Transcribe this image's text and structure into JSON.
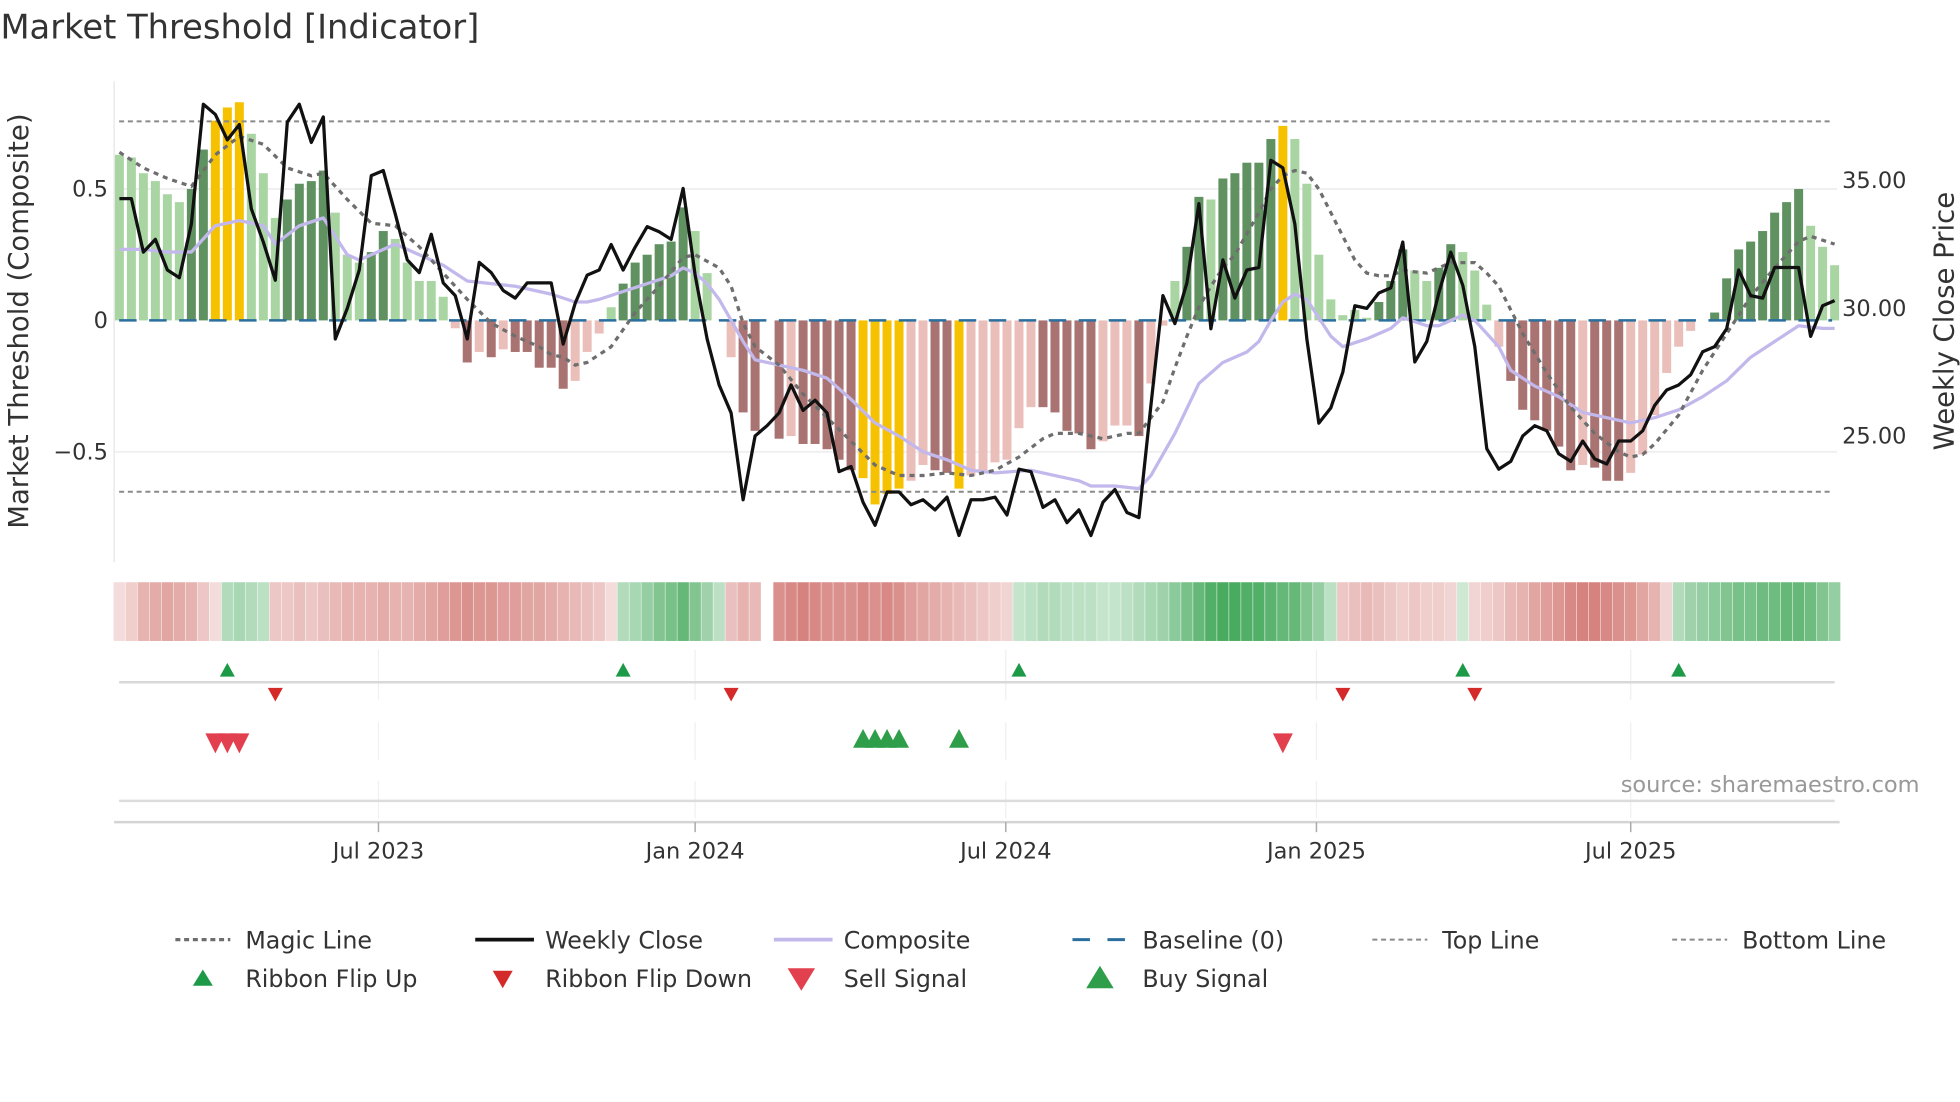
{
  "chart_data": {
    "type": "bar",
    "title": "Market Threshold [Indicator]",
    "ylabel": "Market Threshold (Composite)",
    "y2label": "Weekly Close Price",
    "ylim": [
      -0.92,
      0.91
    ],
    "y2lim": [
      20.05,
      38.9
    ],
    "yticks": [
      {
        "value": 0.5,
        "label": "0.5"
      },
      {
        "value": 0,
        "label": "0"
      },
      {
        "value": -0.5,
        "label": "−0.5"
      }
    ],
    "y2ticks": [
      {
        "value": 35,
        "label": "35.00"
      },
      {
        "value": 30,
        "label": "30.00"
      },
      {
        "value": 25,
        "label": "25.00"
      }
    ],
    "xticks": [
      {
        "week": 21.6,
        "label": "Jul 2023"
      },
      {
        "week": 48.0,
        "label": "Jan 2024"
      },
      {
        "week": 73.9,
        "label": "Jul 2024"
      },
      {
        "week": 99.8,
        "label": "Jan 2025"
      },
      {
        "week": 126.0,
        "label": "Jul 2025"
      }
    ],
    "top_line": 0.757,
    "bottom_line": -0.652,
    "baseline": 0,
    "grid": true,
    "legend_placement": "bottom",
    "composite_bars": [
      0.63,
      0.62,
      0.56,
      0.53,
      0.48,
      0.45,
      0.5,
      0.65,
      0.76,
      0.81,
      0.83,
      0.71,
      0.56,
      0.39,
      0.46,
      0.52,
      0.53,
      0.57,
      0.41,
      0.25,
      0.22,
      0.26,
      0.34,
      0.31,
      0.22,
      0.15,
      0.15,
      0.09,
      -0.03,
      -0.16,
      -0.12,
      -0.14,
      -0.11,
      -0.12,
      -0.12,
      -0.18,
      -0.18,
      -0.26,
      -0.23,
      -0.12,
      -0.05,
      0.05,
      0.14,
      0.22,
      0.25,
      0.29,
      0.3,
      0.43,
      0.34,
      0.18,
      0.0,
      -0.14,
      -0.35,
      -0.42,
      0,
      -0.45,
      -0.44,
      -0.47,
      -0.47,
      -0.49,
      -0.53,
      -0.57,
      -0.6,
      -0.7,
      -0.66,
      -0.64,
      -0.61,
      -0.55,
      -0.57,
      -0.58,
      -0.64,
      -0.59,
      -0.57,
      -0.54,
      -0.53,
      -0.41,
      -0.33,
      -0.33,
      -0.35,
      -0.42,
      -0.43,
      -0.49,
      -0.46,
      -0.4,
      -0.4,
      -0.44,
      -0.24,
      -0.02,
      0.15,
      0.28,
      0.47,
      0.46,
      0.54,
      0.56,
      0.6,
      0.6,
      0.69,
      0.74,
      0.69,
      0.52,
      0.25,
      0.08,
      0.02,
      0.04,
      0.01,
      0.07,
      0.15,
      0.27,
      0.19,
      0.15,
      0.2,
      0.29,
      0.26,
      0.19,
      0.06,
      -0.1,
      -0.23,
      -0.34,
      -0.38,
      -0.42,
      -0.48,
      -0.57,
      -0.55,
      -0.56,
      -0.61,
      -0.61,
      -0.58,
      -0.51,
      -0.36,
      -0.2,
      -0.1,
      -0.04,
      0,
      0.03,
      0.16,
      0.27,
      0.3,
      0.34,
      0.41,
      0.45,
      0.5,
      0.36,
      0.28,
      0.21
    ],
    "bar_states": [
      "lg",
      "lg",
      "lg",
      "lg",
      "lg",
      "lg",
      "dg",
      "dg",
      "y",
      "y",
      "y",
      "lg",
      "lg",
      "lg",
      "dg",
      "dg",
      "dg",
      "dg",
      "lg",
      "lg",
      "lg",
      "dg",
      "dg",
      "lg",
      "lg",
      "lg",
      "lg",
      "lg",
      "pk",
      "dr",
      "pk",
      "dr",
      "pk",
      "dr",
      "dr",
      "dr",
      "dr",
      "dr",
      "pk",
      "pk",
      "pk",
      "lg",
      "dg",
      "dg",
      "dg",
      "dg",
      "dg",
      "dg",
      "lg",
      "lg",
      "lg",
      "pk",
      "dr",
      "dr",
      "none",
      "dr",
      "pk",
      "dr",
      "dr",
      "dr",
      "dr",
      "dr",
      "y",
      "y",
      "y",
      "y",
      "pk",
      "pk",
      "dr",
      "dr",
      "y",
      "pk",
      "pk",
      "pk",
      "pk",
      "pk",
      "pk",
      "dr",
      "dr",
      "dr",
      "dr",
      "dr",
      "pk",
      "pk",
      "pk",
      "dr",
      "pk",
      "pk",
      "lg",
      "dg",
      "dg",
      "lg",
      "dg",
      "dg",
      "dg",
      "dg",
      "dg",
      "y",
      "lg",
      "lg",
      "lg",
      "lg",
      "lg",
      "lg",
      "lg",
      "dg",
      "dg",
      "dg",
      "lg",
      "lg",
      "dg",
      "dg",
      "lg",
      "lg",
      "lg",
      "pk",
      "dr",
      "dr",
      "dr",
      "dr",
      "dr",
      "dr",
      "pk",
      "dr",
      "dr",
      "dr",
      "pk",
      "pk",
      "pk",
      "pk",
      "pk",
      "pk",
      "none",
      "dg",
      "dg",
      "dg",
      "dg",
      "dg",
      "dg",
      "dg",
      "dg",
      "lg",
      "lg",
      "lg"
    ],
    "bar_state_colors": {
      "lg": "#a9d5a3",
      "dg": "#5f9260",
      "y": "#f6c200",
      "pk": "#ebbfb9",
      "dr": "#a97371",
      "none": "#ffffff"
    },
    "weekly_close": [
      34.3,
      34.3,
      32.2,
      32.7,
      31.5,
      31.2,
      33.3,
      38.0,
      37.6,
      36.6,
      37.2,
      33.9,
      32.6,
      31.1,
      37.3,
      38.0,
      36.5,
      37.5,
      28.8,
      30.0,
      31.5,
      35.2,
      35.4,
      33.7,
      31.9,
      31.4,
      32.9,
      31.0,
      30.5,
      28.8,
      31.8,
      31.4,
      30.7,
      30.4,
      31.0,
      31.0,
      31.0,
      28.6,
      30.2,
      31.3,
      31.5,
      32.5,
      31.5,
      32.4,
      33.2,
      33.0,
      32.7,
      34.7,
      31.3,
      28.8,
      27.0,
      25.9,
      22.5,
      25.0,
      25.4,
      25.9,
      27.0,
      26.0,
      26.4,
      25.9,
      23.6,
      23.8,
      22.4,
      21.5,
      22.8,
      22.8,
      22.3,
      22.5,
      22.1,
      22.6,
      21.1,
      22.5,
      22.5,
      22.6,
      21.9,
      23.7,
      23.6,
      22.2,
      22.5,
      21.6,
      22.1,
      21.1,
      22.4,
      22.9,
      22.0,
      21.8,
      26.2,
      30.5,
      29.4,
      31.0,
      34.1,
      29.2,
      31.9,
      30.4,
      31.5,
      31.6,
      35.8,
      35.5,
      33.3,
      28.8,
      25.5,
      26.1,
      27.5,
      30.1,
      30.0,
      30.6,
      30.8,
      32.6,
      27.9,
      28.7,
      30.6,
      32.2,
      30.9,
      28.5,
      24.5,
      23.7,
      24.0,
      25.0,
      25.4,
      25.2,
      24.3,
      24.0,
      24.8,
      24.1,
      23.9,
      24.8,
      24.8,
      25.2,
      26.2,
      26.8,
      27.0,
      27.4,
      28.3,
      28.5,
      29.2,
      31.5,
      30.5,
      30.4,
      31.6,
      31.6,
      31.6,
      28.9,
      30.1,
      30.3
    ],
    "composite_line": [
      [
        0,
        0.27
      ],
      [
        2,
        0.27
      ],
      [
        4,
        0.26
      ],
      [
        6,
        0.26
      ],
      [
        8,
        0.36
      ],
      [
        10,
        0.38
      ],
      [
        12,
        0.36
      ],
      [
        13,
        0.29
      ],
      [
        15,
        0.36
      ],
      [
        17,
        0.39
      ],
      [
        19,
        0.25
      ],
      [
        20,
        0.23
      ],
      [
        21,
        0.25
      ],
      [
        23,
        0.29
      ],
      [
        25,
        0.25
      ],
      [
        27,
        0.21
      ],
      [
        29,
        0.15
      ],
      [
        31,
        0.14
      ],
      [
        33,
        0.13
      ],
      [
        35,
        0.11
      ],
      [
        36,
        0.1
      ],
      [
        38,
        0.07
      ],
      [
        39,
        0.07
      ],
      [
        40,
        0.08
      ],
      [
        42,
        0.11
      ],
      [
        44,
        0.14
      ],
      [
        46,
        0.17
      ],
      [
        47,
        0.2
      ],
      [
        48,
        0.18
      ],
      [
        49,
        0.14
      ],
      [
        50,
        0.08
      ],
      [
        51,
        0
      ],
      [
        52,
        -0.08
      ],
      [
        53,
        -0.15
      ],
      [
        55,
        -0.17
      ],
      [
        57,
        -0.19
      ],
      [
        59,
        -0.22
      ],
      [
        61,
        -0.3
      ],
      [
        63,
        -0.39
      ],
      [
        65,
        -0.44
      ],
      [
        67,
        -0.5
      ],
      [
        69,
        -0.53
      ],
      [
        71,
        -0.57
      ],
      [
        73,
        -0.58
      ],
      [
        76,
        -0.57
      ],
      [
        78,
        -0.59
      ],
      [
        80,
        -0.61
      ],
      [
        81,
        -0.63
      ],
      [
        83,
        -0.63
      ],
      [
        85,
        -0.64
      ],
      [
        86,
        -0.59
      ],
      [
        87,
        -0.51
      ],
      [
        88,
        -0.43
      ],
      [
        90,
        -0.24
      ],
      [
        92,
        -0.16
      ],
      [
        94,
        -0.12
      ],
      [
        95,
        -0.08
      ],
      [
        96,
        0
      ],
      [
        97,
        0.07
      ],
      [
        98,
        0.1
      ],
      [
        99,
        0.08
      ],
      [
        101,
        -0.06
      ],
      [
        102,
        -0.1
      ],
      [
        104,
        -0.07
      ],
      [
        106,
        -0.03
      ],
      [
        107,
        0.01
      ],
      [
        109,
        -0.02
      ],
      [
        110,
        -0.02
      ],
      [
        112,
        0.02
      ],
      [
        113,
        0
      ],
      [
        115,
        -0.1
      ],
      [
        116,
        -0.19
      ],
      [
        118,
        -0.25
      ],
      [
        120,
        -0.29
      ],
      [
        122,
        -0.35
      ],
      [
        124,
        -0.37
      ],
      [
        126,
        -0.39
      ],
      [
        128,
        -0.37
      ],
      [
        130,
        -0.34
      ],
      [
        132,
        -0.29
      ],
      [
        134,
        -0.23
      ],
      [
        136,
        -0.14
      ],
      [
        138,
        -0.08
      ],
      [
        140,
        -0.02
      ],
      [
        142,
        -0.03
      ],
      [
        143,
        -0.03
      ]
    ],
    "magic_line": [
      [
        0,
        0.64
      ],
      [
        2,
        0.58
      ],
      [
        4,
        0.54
      ],
      [
        6,
        0.51
      ],
      [
        8,
        0.63
      ],
      [
        10,
        0.7
      ],
      [
        12,
        0.67
      ],
      [
        14,
        0.58
      ],
      [
        16,
        0.55
      ],
      [
        17,
        0.56
      ],
      [
        19,
        0.46
      ],
      [
        21,
        0.37
      ],
      [
        23,
        0.36
      ],
      [
        25,
        0.28
      ],
      [
        27,
        0.18
      ],
      [
        29,
        0.08
      ],
      [
        31,
        -0.01
      ],
      [
        33,
        -0.06
      ],
      [
        35,
        -0.1
      ],
      [
        36,
        -0.13
      ],
      [
        37,
        -0.14
      ],
      [
        38,
        -0.17
      ],
      [
        39,
        -0.16
      ],
      [
        41,
        -0.1
      ],
      [
        43,
        0.03
      ],
      [
        45,
        0.13
      ],
      [
        47,
        0.24
      ],
      [
        48,
        0.25
      ],
      [
        50,
        0.2
      ],
      [
        51,
        0.13
      ],
      [
        52,
        -0.01
      ],
      [
        53,
        -0.1
      ],
      [
        55,
        -0.17
      ],
      [
        57,
        -0.28
      ],
      [
        59,
        -0.37
      ],
      [
        61,
        -0.46
      ],
      [
        63,
        -0.55
      ],
      [
        65,
        -0.59
      ],
      [
        67,
        -0.59
      ],
      [
        69,
        -0.58
      ],
      [
        71,
        -0.59
      ],
      [
        73,
        -0.57
      ],
      [
        75,
        -0.52
      ],
      [
        77,
        -0.45
      ],
      [
        78,
        -0.43
      ],
      [
        80,
        -0.43
      ],
      [
        82,
        -0.45
      ],
      [
        84,
        -0.43
      ],
      [
        85,
        -0.43
      ],
      [
        86,
        -0.37
      ],
      [
        87,
        -0.31
      ],
      [
        88,
        -0.18
      ],
      [
        89,
        -0.06
      ],
      [
        90,
        0.05
      ],
      [
        91,
        0.13
      ],
      [
        92,
        0.2
      ],
      [
        93,
        0.25
      ],
      [
        94,
        0.33
      ],
      [
        95,
        0.41
      ],
      [
        96,
        0.5
      ],
      [
        97,
        0.55
      ],
      [
        98,
        0.57
      ],
      [
        99,
        0.56
      ],
      [
        100,
        0.5
      ],
      [
        101,
        0.41
      ],
      [
        102,
        0.32
      ],
      [
        103,
        0.23
      ],
      [
        104,
        0.18
      ],
      [
        105,
        0.17
      ],
      [
        106,
        0.17
      ],
      [
        107,
        0.19
      ],
      [
        109,
        0.18
      ],
      [
        111,
        0.22
      ],
      [
        113,
        0.22
      ],
      [
        114,
        0.18
      ],
      [
        115,
        0.13
      ],
      [
        117,
        -0.05
      ],
      [
        119,
        -0.2
      ],
      [
        121,
        -0.33
      ],
      [
        123,
        -0.43
      ],
      [
        125,
        -0.5
      ],
      [
        126,
        -0.52
      ],
      [
        127,
        -0.51
      ],
      [
        128,
        -0.47
      ],
      [
        130,
        -0.36
      ],
      [
        132,
        -0.19
      ],
      [
        134,
        -0.05
      ],
      [
        136,
        0.09
      ],
      [
        138,
        0.2
      ],
      [
        140,
        0.3
      ],
      [
        141,
        0.32
      ],
      [
        143,
        0.29
      ]
    ],
    "ribbon": [
      -0.15,
      -0.25,
      -0.45,
      -0.5,
      -0.55,
      -0.5,
      -0.45,
      -0.3,
      -0.15,
      0.3,
      0.35,
      0.3,
      0.25,
      -0.3,
      -0.3,
      -0.35,
      -0.3,
      -0.35,
      -0.4,
      -0.45,
      -0.45,
      -0.45,
      -0.5,
      -0.45,
      -0.45,
      -0.5,
      -0.55,
      -0.6,
      -0.65,
      -0.7,
      -0.65,
      -0.65,
      -0.6,
      -0.6,
      -0.55,
      -0.55,
      -0.5,
      -0.45,
      -0.4,
      -0.35,
      -0.3,
      -0.15,
      0.3,
      0.35,
      0.45,
      0.55,
      0.6,
      0.7,
      0.55,
      0.4,
      0.25,
      -0.35,
      -0.45,
      -0.4,
      null,
      -0.7,
      -0.75,
      -0.8,
      -0.75,
      -0.7,
      -0.7,
      -0.7,
      -0.75,
      -0.7,
      -0.75,
      -0.7,
      -0.6,
      -0.55,
      -0.5,
      -0.45,
      -0.4,
      -0.35,
      -0.3,
      -0.25,
      -0.2,
      0.2,
      0.25,
      0.3,
      0.3,
      0.25,
      0.25,
      0.25,
      0.2,
      0.2,
      0.25,
      0.3,
      0.35,
      0.4,
      0.5,
      0.6,
      0.7,
      0.8,
      0.85,
      0.85,
      0.8,
      0.8,
      0.75,
      0.7,
      0.7,
      0.55,
      0.45,
      0.25,
      -0.3,
      -0.35,
      -0.4,
      -0.35,
      -0.3,
      -0.25,
      -0.3,
      -0.25,
      -0.25,
      -0.2,
      0.15,
      -0.2,
      -0.25,
      -0.3,
      -0.4,
      -0.45,
      -0.55,
      -0.6,
      -0.65,
      -0.75,
      -0.8,
      -0.8,
      -0.75,
      -0.7,
      -0.65,
      -0.55,
      -0.45,
      -0.2,
      0.3,
      0.4,
      0.45,
      0.5,
      0.55,
      0.6,
      0.6,
      0.65,
      0.65,
      0.7,
      0.7,
      0.65,
      0.55,
      0.45
    ],
    "ribbon_flip_up_weeks": [
      9,
      42,
      75,
      112,
      130
    ],
    "ribbon_flip_down_weeks": [
      13,
      51,
      102,
      113
    ],
    "sell_signal_weeks": [
      8,
      9,
      10,
      97
    ],
    "buy_signal_weeks": [
      62,
      63,
      64,
      65,
      70
    ],
    "colors": {
      "magic": "#6e6e6e",
      "close": "#111111",
      "composite": "#c3b8ec",
      "baseline": "#2b6f9e",
      "limit": "#8a8a8a",
      "flip_up": "#1d9a48",
      "flip_down": "#d42a2a",
      "sell": "#e2404e",
      "buy": "#2e9e4a",
      "ribbon_pos": "#36a24f",
      "ribbon_neg": "#cf6e69"
    },
    "legend": [
      {
        "key": "magic",
        "label": "Magic Line"
      },
      {
        "key": "close",
        "label": "Weekly Close"
      },
      {
        "key": "composite",
        "label": "Composite"
      },
      {
        "key": "baseline",
        "label": "Baseline (0)"
      },
      {
        "key": "top",
        "label": "Top Line"
      },
      {
        "key": "bottom",
        "label": "Bottom Line"
      },
      {
        "key": "flip_up",
        "label": "Ribbon Flip Up"
      },
      {
        "key": "flip_down",
        "label": "Ribbon Flip Down"
      },
      {
        "key": "sell",
        "label": "Sell Signal"
      },
      {
        "key": "buy",
        "label": "Buy Signal"
      }
    ],
    "source": "source: sharemaestro.com"
  }
}
